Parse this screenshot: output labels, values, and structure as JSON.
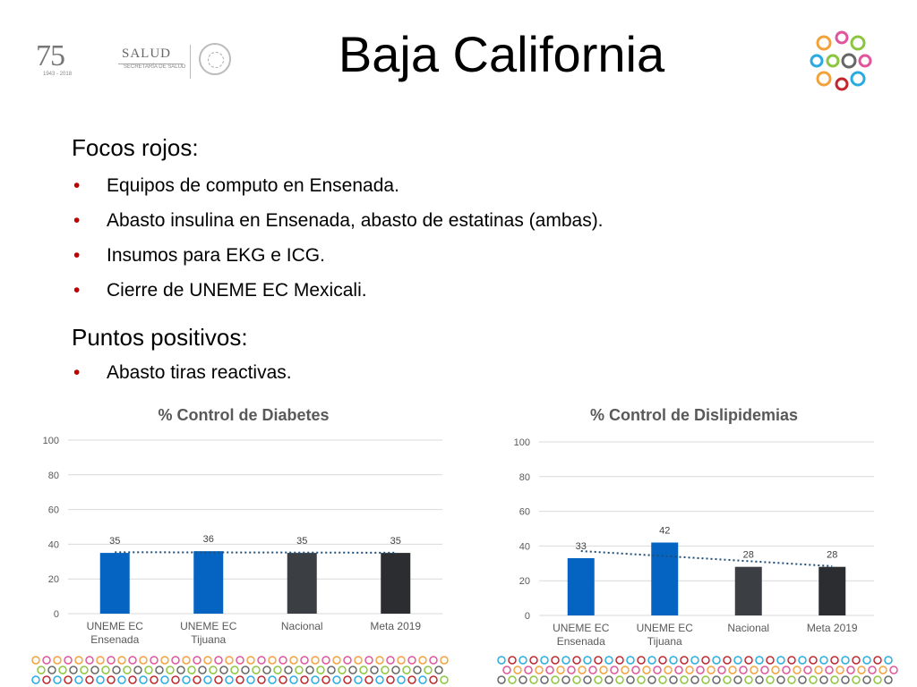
{
  "header": {
    "logo": {
      "number": "75",
      "years": "1943 - 2018",
      "brand": "SALUD",
      "subtitle": "SECRETARÍA DE SALUD"
    },
    "title": "Baja California"
  },
  "content": {
    "sections": [
      {
        "heading": "Focos rojos:",
        "bullets": [
          "Equipos de computo en Ensenada.",
          "Abasto insulina en Ensenada, abasto de estatinas (ambas).",
          "Insumos para EKG e ICG.",
          "Cierre de UNEME EC Mexicali."
        ]
      },
      {
        "heading": "Puntos positivos:",
        "bullets": [
          "Abasto tiras reactivas."
        ]
      }
    ]
  },
  "colors": {
    "bullet": "#c00000",
    "blue": "#0563c1",
    "dark_gray": "#3b3e43",
    "darker_gray": "#2b2d30",
    "trend": "#1f4e79",
    "grid": "#d9d9d9",
    "text_gray": "#595959"
  },
  "chart_data": [
    {
      "type": "bar",
      "title": "% Control de Diabetes",
      "categories": [
        [
          "UNEME EC",
          "Ensenada"
        ],
        [
          "UNEME EC",
          "Tijuana"
        ],
        [
          "Nacional"
        ],
        [
          "Meta 2019"
        ]
      ],
      "values": [
        35,
        36,
        35,
        35
      ],
      "bar_colors": [
        "#0563c1",
        "#0563c1",
        "#3b3e43",
        "#2b2d30"
      ],
      "ylim": [
        0,
        100
      ],
      "yticks": [
        0,
        20,
        40,
        60,
        80,
        100
      ],
      "trendline": "linear",
      "grid": true
    },
    {
      "type": "bar",
      "title": "% Control de Dislipidemias",
      "categories": [
        [
          "UNEME EC",
          "Ensenada"
        ],
        [
          "UNEME EC",
          "Tijuana"
        ],
        [
          "Nacional"
        ],
        [
          "Meta 2019"
        ]
      ],
      "values": [
        33,
        42,
        28,
        28
      ],
      "bar_colors": [
        "#0563c1",
        "#0563c1",
        "#3b3e43",
        "#2b2d30"
      ],
      "ylim": [
        0,
        100
      ],
      "yticks": [
        0,
        20,
        40,
        60,
        80,
        100
      ],
      "trendline": "linear",
      "grid": true
    }
  ]
}
